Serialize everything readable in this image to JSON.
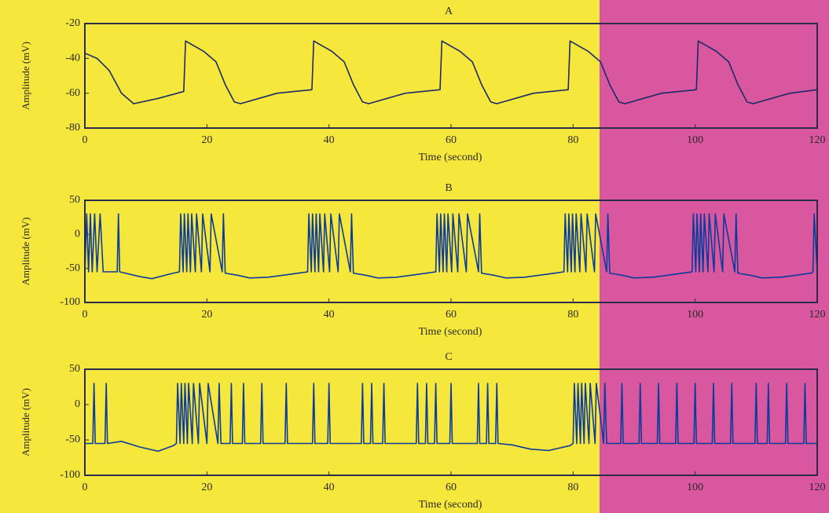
{
  "chart_data": [
    {
      "type": "line",
      "title": "A",
      "xlabel": "Time (second)",
      "ylabel": "Amplitude (mV)",
      "color": "#1c2b66",
      "xlim": [
        0,
        120
      ],
      "xticks": [
        0,
        20,
        40,
        60,
        80,
        100,
        120
      ],
      "ylim": [
        -80,
        -20
      ],
      "yticks": [
        -80,
        -60,
        -40,
        -20
      ],
      "x": [
        0,
        2,
        4,
        6,
        8,
        12,
        16.2,
        16.5,
        19.5,
        21.5,
        23,
        24.5,
        25.5,
        28.5,
        31.5,
        37.2,
        37.5,
        40.5,
        42.5,
        44,
        45.5,
        46.5,
        49.5,
        52.5,
        58.2,
        58.5,
        61.5,
        63.5,
        65,
        66.5,
        67.5,
        70.5,
        73.5,
        79.2,
        79.5,
        82.5,
        84.5,
        86,
        87.5,
        88.5,
        91.5,
        94.5,
        100.2,
        100.5,
        103.5,
        105.5,
        107,
        108.5,
        109.5,
        112.5,
        115.5,
        120
      ],
      "values": [
        -37,
        -40,
        -47,
        -60,
        -66,
        -63,
        -59,
        -30,
        -36,
        -42,
        -55,
        -65,
        -66,
        -63,
        -60,
        -58,
        -30,
        -36,
        -42,
        -55,
        -65,
        -66,
        -63,
        -60,
        -58,
        -30,
        -36,
        -42,
        -55,
        -65,
        -66,
        -63,
        -60,
        -58,
        -30,
        -36,
        -42,
        -55,
        -65,
        -66,
        -63,
        -60,
        -58,
        -30,
        -36,
        -42,
        -55,
        -65,
        -66,
        -63,
        -60,
        -58
      ]
    },
    {
      "type": "line",
      "title": "B",
      "xlabel": "Time (second)",
      "ylabel": "Amplitude (mV)",
      "color": "#0b3b9c",
      "xlim": [
        0,
        120
      ],
      "xticks": [
        0,
        20,
        40,
        60,
        80,
        100,
        120
      ],
      "ylim": [
        -100,
        50
      ],
      "yticks": [
        -100,
        -50,
        0,
        50
      ],
      "x": [
        0,
        0.3,
        0.6,
        0.9,
        1.2,
        1.6,
        2,
        2.5,
        3,
        5.3,
        5.5,
        5.7,
        9,
        11,
        14,
        15.5,
        15.7,
        16.1,
        16.3,
        16.7,
        16.9,
        17.3,
        17.5,
        18.1,
        18.3,
        19.1,
        19.3,
        20.5,
        20.7,
        22.5,
        22.7,
        23,
        25,
        27,
        30,
        35,
        36.5,
        36.7,
        37.1,
        37.3,
        37.7,
        37.9,
        38.3,
        38.5,
        39.1,
        39.3,
        40.1,
        40.3,
        41.5,
        41.7,
        43.5,
        43.7,
        44,
        46,
        48,
        51,
        56,
        57.5,
        57.7,
        58.1,
        58.3,
        58.7,
        58.9,
        59.3,
        59.5,
        60.1,
        60.3,
        61.1,
        61.3,
        62.5,
        62.7,
        64.5,
        64.7,
        65,
        67,
        69,
        72,
        77,
        78.5,
        78.7,
        79.1,
        79.3,
        79.7,
        79.9,
        80.3,
        80.5,
        81.1,
        81.3,
        82.1,
        82.3,
        83.5,
        83.7,
        85.5,
        85.7,
        86,
        88,
        90,
        93,
        98,
        99.5,
        99.7,
        100.1,
        100.3,
        100.7,
        100.9,
        101.3,
        101.5,
        102.1,
        102.3,
        103.1,
        103.3,
        104.5,
        104.7,
        106.5,
        106.7,
        107,
        109,
        111,
        114,
        119,
        119.3,
        119.5,
        120
      ],
      "values": [
        -55,
        30,
        -55,
        30,
        -55,
        30,
        -55,
        30,
        -55,
        -55,
        30,
        -55,
        -62,
        -65,
        -58,
        -55,
        30,
        -55,
        30,
        -55,
        30,
        -55,
        30,
        -55,
        30,
        -55,
        30,
        -55,
        30,
        -55,
        30,
        -57,
        -60,
        -64,
        -63,
        -57,
        -55,
        30,
        -55,
        30,
        -55,
        30,
        -55,
        30,
        -55,
        30,
        -55,
        30,
        -55,
        30,
        -55,
        30,
        -57,
        -60,
        -64,
        -63,
        -57,
        -55,
        30,
        -55,
        30,
        -55,
        30,
        -55,
        30,
        -55,
        30,
        -55,
        30,
        -55,
        30,
        -55,
        30,
        -57,
        -60,
        -64,
        -63,
        -57,
        -55,
        30,
        -55,
        30,
        -55,
        30,
        -55,
        30,
        -55,
        30,
        -55,
        30,
        -55,
        30,
        -55,
        30,
        -57,
        -60,
        -64,
        -63,
        -57,
        -55,
        30,
        -55,
        30,
        -55,
        30,
        -55,
        30,
        -55,
        30,
        -55,
        30,
        -55,
        30,
        -55,
        30,
        -57,
        -60,
        -64,
        -63,
        -57,
        -55,
        30,
        -55
      ]
    },
    {
      "type": "line",
      "title": "C",
      "xlabel": "Time (second)",
      "ylabel": "Amplitude (mV)",
      "color": "#0b3b9c",
      "xlim": [
        0,
        120
      ],
      "xticks": [
        0,
        20,
        40,
        60,
        80,
        100,
        120
      ],
      "ylim": [
        -100,
        50
      ],
      "yticks": [
        -100,
        -50,
        0,
        50
      ],
      "x": [
        0,
        1.3,
        1.5,
        1.7,
        3.3,
        3.5,
        3.7,
        6,
        9,
        12,
        14.5,
        15,
        15.2,
        15.6,
        15.8,
        16.2,
        16.4,
        16.8,
        17,
        17.6,
        17.8,
        18.6,
        18.8,
        20,
        20.2,
        21.8,
        22,
        22.3,
        23.8,
        24,
        24.2,
        25.8,
        26,
        26.2,
        28.8,
        29,
        29.2,
        32.8,
        33,
        33.2,
        37.3,
        37.5,
        37.7,
        39.8,
        40,
        40.2,
        45.3,
        45.5,
        45.7,
        46.8,
        47,
        47.2,
        48.8,
        49,
        49.2,
        54.3,
        54.5,
        54.7,
        55.8,
        56,
        56.2,
        57.3,
        57.5,
        57.7,
        59.8,
        60,
        60.2,
        64.3,
        64.5,
        64.7,
        65.8,
        66,
        66.2,
        67.3,
        67.5,
        67.7,
        70,
        73,
        76,
        79.5,
        80,
        80.2,
        80.6,
        80.8,
        81.2,
        81.4,
        81.8,
        82,
        82.6,
        82.8,
        83.6,
        83.8,
        85,
        85.2,
        85.5,
        87.8,
        88,
        88.2,
        90.8,
        91,
        91.2,
        93.8,
        94,
        94.2,
        96.8,
        97,
        97.2,
        99.8,
        100,
        100.2,
        102.8,
        103,
        103.2,
        105.8,
        106,
        106.2,
        109.8,
        110,
        110.2,
        111.8,
        112,
        112.2,
        114.8,
        115,
        115.2,
        117.8,
        118,
        118.2,
        120
      ],
      "values": [
        -55,
        -55,
        30,
        -55,
        -55,
        30,
        -55,
        -52,
        -60,
        -66,
        -58,
        -55,
        30,
        -55,
        30,
        -55,
        30,
        -55,
        30,
        -55,
        30,
        -55,
        30,
        -55,
        30,
        -55,
        30,
        -55,
        -55,
        30,
        -55,
        -55,
        30,
        -55,
        -55,
        30,
        -55,
        -55,
        30,
        -55,
        -55,
        30,
        -55,
        -55,
        30,
        -55,
        -55,
        30,
        -55,
        -55,
        30,
        -55,
        -55,
        30,
        -55,
        -55,
        30,
        -55,
        -55,
        30,
        -55,
        -55,
        30,
        -55,
        -55,
        30,
        -55,
        -55,
        30,
        -55,
        -55,
        30,
        -55,
        -55,
        30,
        -55,
        -57,
        -63,
        -65,
        -58,
        -55,
        30,
        -55,
        30,
        -55,
        30,
        -55,
        30,
        -55,
        30,
        -55,
        30,
        -55,
        30,
        -55,
        -55,
        30,
        -55,
        -55,
        30,
        -55,
        -55,
        30,
        -55,
        -55,
        30,
        -55,
        -55,
        30,
        -55,
        -55,
        30,
        -55,
        -55,
        30,
        -55,
        -55,
        30,
        -55,
        -55,
        30,
        -55,
        -55,
        30,
        -55,
        -55,
        30,
        -55,
        -55
      ]
    }
  ]
}
